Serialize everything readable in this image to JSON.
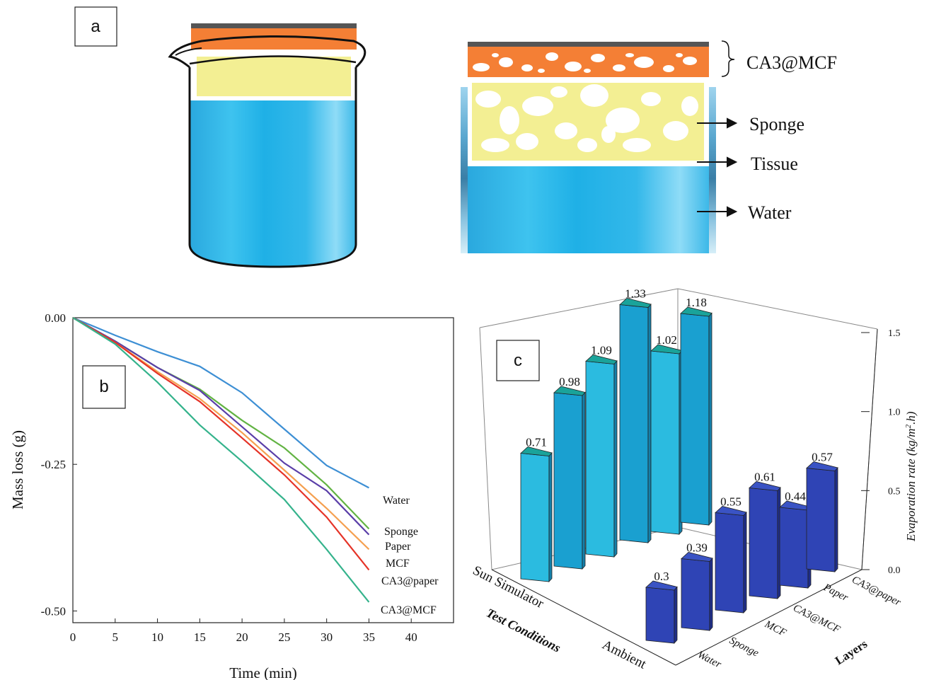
{
  "panels": {
    "a": {
      "letter": "a",
      "layer_title": "CA3@MCF",
      "layer_labels": [
        "Sponge",
        "Tissue",
        "Water"
      ]
    },
    "b": {
      "letter": "b"
    },
    "c": {
      "letter": "c"
    }
  },
  "colors": {
    "orange": "#f47f35",
    "yellow": "#f3ef93",
    "water": "#27b3e8",
    "bar_top_teal": "#1aa39a",
    "sun_bar": "#2bb5e0",
    "ambient_bar": "#2f44b5"
  },
  "chart_data": [
    {
      "type": "line",
      "xlabel": "Time (min)",
      "ylabel": "Mass loss (g)",
      "xlim": [
        0,
        45
      ],
      "ylim": [
        -0.52,
        0.0
      ],
      "xticks": [
        0,
        5,
        10,
        15,
        20,
        25,
        30,
        35,
        40
      ],
      "yticks": [
        "0.00",
        "-0.25",
        "-0.50"
      ],
      "x": [
        0,
        5,
        10,
        15,
        20,
        25,
        30,
        35
      ],
      "series": [
        {
          "name": "Water",
          "color": "#3d8fd4",
          "values": [
            0,
            -0.03,
            -0.058,
            -0.083,
            -0.128,
            -0.19,
            -0.252,
            -0.29
          ]
        },
        {
          "name": "Sponge",
          "color": "#62b343",
          "values": [
            0,
            -0.04,
            -0.085,
            -0.122,
            -0.175,
            -0.222,
            -0.285,
            -0.36
          ]
        },
        {
          "name": "Paper",
          "color": "#5a3ea8",
          "values": [
            0,
            -0.04,
            -0.085,
            -0.124,
            -0.186,
            -0.248,
            -0.295,
            -0.37
          ]
        },
        {
          "name": "MCF",
          "color": "#f5a050",
          "values": [
            0,
            -0.042,
            -0.092,
            -0.138,
            -0.196,
            -0.26,
            -0.325,
            -0.395
          ]
        },
        {
          "name": "CA3@paper",
          "color": "#e53327",
          "values": [
            0,
            -0.042,
            -0.095,
            -0.143,
            -0.205,
            -0.268,
            -0.34,
            -0.43
          ]
        },
        {
          "name": "CA3@MCF",
          "color": "#35b38c",
          "values": [
            0,
            -0.045,
            -0.11,
            -0.183,
            -0.245,
            -0.31,
            -0.395,
            -0.485
          ]
        }
      ],
      "legend": "right-of-lines"
    },
    {
      "type": "bar",
      "subtype": "3d-bar",
      "categories": [
        "Water",
        "Sponge",
        "MCF",
        "CA3@MCF",
        "Paper",
        "CA3@paper"
      ],
      "axis_names": {
        "x": "Layers",
        "y": "Test Conditions",
        "z": "Evaporation rate (kg/m2.h)"
      },
      "conditions": [
        "Sun Simulator",
        "Ambient"
      ],
      "zlim": [
        0,
        1.5
      ],
      "zticks": [
        "0.0",
        "0.5",
        "1.0",
        "1.5"
      ],
      "series": [
        {
          "name": "Sun Simulator",
          "values": [
            0.71,
            0.98,
            1.09,
            1.33,
            1.02,
            1.18
          ],
          "labels": [
            "0.71",
            "0.98",
            "1.09",
            "1.33",
            "1.02",
            "1.18"
          ]
        },
        {
          "name": "Ambient",
          "values": [
            0.3,
            0.39,
            0.55,
            0.61,
            0.44,
            0.57
          ],
          "labels": [
            "0.3",
            "0.39",
            "0.55",
            "0.61",
            "0.44",
            "0.57"
          ]
        }
      ],
      "zlabel_unit_sup": "2",
      "zlabel_parts": [
        "Evaporation rate (kg/m",
        ".h)"
      ]
    }
  ]
}
